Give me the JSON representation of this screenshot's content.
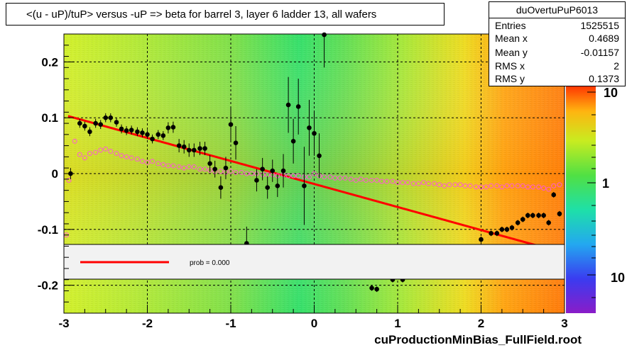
{
  "title": "<(u - uP)/tuP> versus  -uP => beta for barrel 3, layer 6 ladder 13, all wafers",
  "footer": "cuProductionMinBias_FullField.root",
  "stats": {
    "name": "duOvertuPuP6013",
    "rows": [
      {
        "key": "Entries",
        "value": "1525515"
      },
      {
        "key": "Mean x",
        "value": "0.4689"
      },
      {
        "key": "Mean y",
        "value": "-0.01157"
      },
      {
        "key": "RMS x",
        "value": "2"
      },
      {
        "key": "RMS y",
        "value": "0.1373"
      }
    ]
  },
  "legend": {
    "text": "prob = 0.000",
    "line_color": "#ff0000"
  },
  "colors": {
    "profile": "#000000",
    "mean_markers": "#ff5ad2",
    "fit_line": "#ff0000"
  },
  "chart_data": {
    "type": "heatmap",
    "xlim": [
      -3,
      3
    ],
    "ylim": [
      -0.25,
      0.25
    ],
    "x_ticks": [
      -3,
      -2,
      -1,
      0,
      1,
      2,
      3
    ],
    "y_ticks": [
      -0.2,
      -0.1,
      0,
      0.1,
      0.2
    ],
    "x_tick_labels": [
      "-3",
      "-2",
      "-1",
      "0",
      "1",
      "2",
      "3"
    ],
    "y_tick_labels": [
      "-0.2",
      "-0.1",
      "0",
      "0.1",
      "0.2"
    ],
    "grid": true,
    "colorbar": {
      "scale": "log",
      "tick_labels": [
        "10",
        "1",
        "10"
      ]
    },
    "fit_line": {
      "x": [
        -2.95,
        2.7
      ],
      "y": [
        0.103,
        -0.13
      ]
    },
    "profile_points": [
      {
        "x": -2.92,
        "y": 0.0,
        "err": 0.01
      },
      {
        "x": -2.81,
        "y": 0.09,
        "err": 0.008
      },
      {
        "x": -2.75,
        "y": 0.085,
        "err": 0.008
      },
      {
        "x": -2.69,
        "y": 0.075,
        "err": 0.008
      },
      {
        "x": -2.62,
        "y": 0.09,
        "err": 0.008
      },
      {
        "x": -2.56,
        "y": 0.088,
        "err": 0.008
      },
      {
        "x": -2.5,
        "y": 0.1,
        "err": 0.008
      },
      {
        "x": -2.44,
        "y": 0.1,
        "err": 0.008
      },
      {
        "x": -2.37,
        "y": 0.092,
        "err": 0.008
      },
      {
        "x": -2.31,
        "y": 0.08,
        "err": 0.008
      },
      {
        "x": -2.25,
        "y": 0.077,
        "err": 0.008
      },
      {
        "x": -2.19,
        "y": 0.078,
        "err": 0.008
      },
      {
        "x": -2.12,
        "y": 0.075,
        "err": 0.008
      },
      {
        "x": -2.06,
        "y": 0.073,
        "err": 0.008
      },
      {
        "x": -2.0,
        "y": 0.07,
        "err": 0.008
      },
      {
        "x": -1.94,
        "y": 0.062,
        "err": 0.008
      },
      {
        "x": -1.87,
        "y": 0.07,
        "err": 0.008
      },
      {
        "x": -1.81,
        "y": 0.068,
        "err": 0.008
      },
      {
        "x": -1.75,
        "y": 0.082,
        "err": 0.01
      },
      {
        "x": -1.69,
        "y": 0.083,
        "err": 0.01
      },
      {
        "x": -1.62,
        "y": 0.05,
        "err": 0.012
      },
      {
        "x": -1.56,
        "y": 0.048,
        "err": 0.012
      },
      {
        "x": -1.5,
        "y": 0.042,
        "err": 0.012
      },
      {
        "x": -1.44,
        "y": 0.042,
        "err": 0.012
      },
      {
        "x": -1.37,
        "y": 0.045,
        "err": 0.012
      },
      {
        "x": -1.31,
        "y": 0.045,
        "err": 0.012
      },
      {
        "x": -1.25,
        "y": 0.018,
        "err": 0.015
      },
      {
        "x": -1.19,
        "y": 0.008,
        "err": 0.015
      },
      {
        "x": -1.12,
        "y": -0.025,
        "err": 0.02
      },
      {
        "x": -1.06,
        "y": 0.01,
        "err": 0.02
      },
      {
        "x": -1.0,
        "y": 0.088,
        "err": 0.03
      },
      {
        "x": -0.94,
        "y": 0.055,
        "err": 0.03
      },
      {
        "x": -0.81,
        "y": -0.125,
        "err": 0.03
      },
      {
        "x": -0.69,
        "y": -0.012,
        "err": 0.02
      },
      {
        "x": -0.62,
        "y": 0.008,
        "err": 0.02
      },
      {
        "x": -0.56,
        "y": -0.025,
        "err": 0.02
      },
      {
        "x": -0.5,
        "y": 0.005,
        "err": 0.02
      },
      {
        "x": -0.44,
        "y": -0.022,
        "err": 0.02
      },
      {
        "x": -0.37,
        "y": 0.005,
        "err": 0.03
      },
      {
        "x": -0.31,
        "y": 0.123,
        "err": 0.05
      },
      {
        "x": -0.25,
        "y": 0.058,
        "err": 0.04
      },
      {
        "x": -0.19,
        "y": 0.12,
        "err": 0.05
      },
      {
        "x": -0.12,
        "y": -0.022,
        "err": 0.07
      },
      {
        "x": -0.06,
        "y": 0.082,
        "err": 0.05
      },
      {
        "x": 0.0,
        "y": 0.072,
        "err": 0.04
      },
      {
        "x": 0.06,
        "y": 0.032,
        "err": 0.04
      },
      {
        "x": 0.12,
        "y": 0.25,
        "err": 0.06
      },
      {
        "x": 0.69,
        "y": -0.205,
        "err": 0.005
      },
      {
        "x": 0.75,
        "y": -0.207,
        "err": 0.005
      },
      {
        "x": 0.94,
        "y": -0.19,
        "err": 0.005
      },
      {
        "x": 1.06,
        "y": -0.19,
        "err": 0.005
      },
      {
        "x": 2.0,
        "y": -0.118,
        "err": 0.005
      },
      {
        "x": 2.12,
        "y": -0.107,
        "err": 0.005
      },
      {
        "x": 2.19,
        "y": -0.107,
        "err": 0.005
      },
      {
        "x": 2.25,
        "y": -0.1,
        "err": 0.005
      },
      {
        "x": 2.31,
        "y": -0.1,
        "err": 0.005
      },
      {
        "x": 2.37,
        "y": -0.097,
        "err": 0.005
      },
      {
        "x": 2.44,
        "y": -0.088,
        "err": 0.005
      },
      {
        "x": 2.5,
        "y": -0.082,
        "err": 0.005
      },
      {
        "x": 2.56,
        "y": -0.075,
        "err": 0.005
      },
      {
        "x": 2.62,
        "y": -0.075,
        "err": 0.005
      },
      {
        "x": 2.69,
        "y": -0.075,
        "err": 0.005
      },
      {
        "x": 2.75,
        "y": -0.075,
        "err": 0.005
      },
      {
        "x": 2.81,
        "y": -0.088,
        "err": 0.005
      },
      {
        "x": 2.87,
        "y": -0.038,
        "err": 0.005
      },
      {
        "x": 2.94,
        "y": -0.072,
        "err": 0.005
      }
    ],
    "mean_points": {
      "x": [
        -2.97,
        -2.94,
        -2.87,
        -2.81,
        -2.75,
        -2.69,
        -2.62,
        -2.56,
        -2.5,
        -2.44,
        -2.37,
        -2.31,
        -2.25,
        -2.19,
        -2.12,
        -2.06,
        -2.0,
        -1.94,
        -1.87,
        -1.81,
        -1.75,
        -1.69,
        -1.62,
        -1.56,
        -1.5,
        -1.44,
        -1.37,
        -1.31,
        -1.25,
        -1.19,
        -1.12,
        -1.06,
        -1.0,
        -0.94,
        -0.87,
        -0.81,
        -0.75,
        -0.69,
        -0.62,
        -0.56,
        -0.5,
        -0.44,
        -0.37,
        -0.31,
        -0.25,
        -0.19,
        -0.12,
        -0.06,
        0.0,
        0.06,
        0.12,
        0.19,
        0.25,
        0.31,
        0.37,
        0.44,
        0.5,
        0.56,
        0.62,
        0.69,
        0.75,
        0.81,
        0.87,
        0.94,
        1.0,
        1.06,
        1.12,
        1.19,
        1.25,
        1.31,
        1.37,
        1.44,
        1.5,
        1.56,
        1.62,
        1.69,
        1.75,
        1.81,
        1.87,
        1.94,
        2.0,
        2.06,
        2.12,
        2.19,
        2.25,
        2.31,
        2.37,
        2.44,
        2.5,
        2.56,
        2.62,
        2.69,
        2.75,
        2.81,
        2.87,
        2.94
      ],
      "y": [
        -0.11,
        -0.012,
        0.058,
        0.034,
        0.028,
        0.036,
        0.038,
        0.042,
        0.044,
        0.04,
        0.036,
        0.032,
        0.03,
        0.028,
        0.026,
        0.022,
        0.02,
        0.022,
        0.018,
        0.016,
        0.014,
        0.014,
        0.012,
        0.01,
        0.012,
        0.012,
        0.008,
        0.008,
        0.006,
        0.004,
        0.004,
        0.002,
        0.004,
        0.002,
        0.002,
        0.0,
        0.0,
        0.0,
        -0.002,
        -0.002,
        -0.002,
        -0.004,
        -0.002,
        -0.004,
        -0.004,
        -0.004,
        -0.006,
        -0.006,
        0.0,
        -0.004,
        -0.006,
        -0.006,
        -0.008,
        -0.008,
        -0.008,
        -0.01,
        -0.012,
        -0.01,
        -0.012,
        -0.012,
        -0.012,
        -0.014,
        -0.014,
        -0.014,
        -0.016,
        -0.016,
        -0.016,
        -0.018,
        -0.018,
        -0.016,
        -0.018,
        -0.018,
        -0.02,
        -0.022,
        -0.02,
        -0.02,
        -0.02,
        -0.022,
        -0.022,
        -0.024,
        -0.024,
        -0.024,
        -0.022,
        -0.022,
        -0.024,
        -0.022,
        -0.022,
        -0.022,
        -0.022,
        -0.024,
        -0.024,
        -0.024,
        -0.026,
        -0.028,
        -0.022,
        -0.02
      ]
    }
  }
}
